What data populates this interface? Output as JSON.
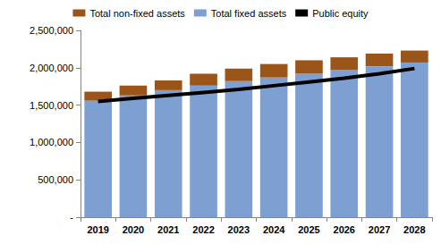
{
  "chart_data": {
    "type": "bar",
    "stacked": true,
    "grid": false,
    "legend": "top",
    "categories": [
      "2019",
      "2020",
      "2021",
      "2022",
      "2023",
      "2024",
      "2025",
      "2026",
      "2027",
      "2028"
    ],
    "series": [
      {
        "name": "Total non-fixed assets",
        "type": "bar",
        "color": "#9c5518",
        "values": [
          120000,
          130000,
          130000,
          160000,
          170000,
          180000,
          180000,
          170000,
          170000,
          160000
        ]
      },
      {
        "name": "Total fixed assets",
        "type": "bar",
        "color": "#7e9fd2",
        "values": [
          1560000,
          1630000,
          1700000,
          1760000,
          1820000,
          1870000,
          1920000,
          1970000,
          2020000,
          2070000
        ]
      },
      {
        "name": "Public equity",
        "type": "line",
        "color": "#000000",
        "line_style": "solid",
        "values": [
          1550000,
          1590000,
          1630000,
          1670000,
          1710000,
          1760000,
          1810000,
          1860000,
          1920000,
          1990000
        ]
      }
    ],
    "ylim": [
      0,
      2500000
    ],
    "yticks": [
      {
        "value": 0,
        "label": "-"
      },
      {
        "value": 500000,
        "label": "500,000"
      },
      {
        "value": 1000000,
        "label": "1,000,000"
      },
      {
        "value": 1500000,
        "label": "1,500,000"
      },
      {
        "value": 2000000,
        "label": "2,000,000"
      },
      {
        "value": 2500000,
        "label": "2,500,000"
      }
    ]
  }
}
